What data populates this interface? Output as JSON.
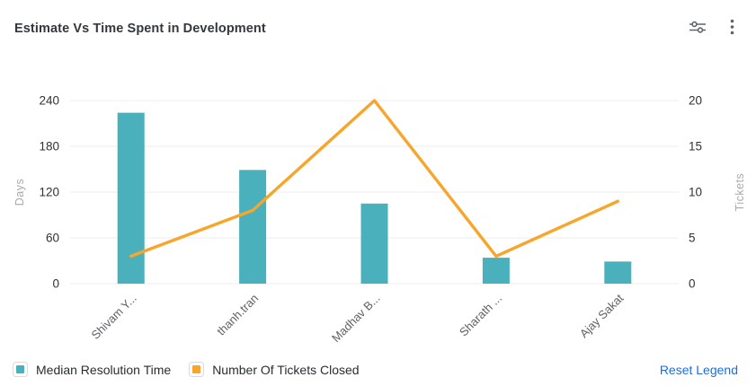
{
  "header": {
    "title": "Estimate Vs Time Spent in Development",
    "settings_icon": "sliders-icon",
    "menu_icon": "kebab-menu-icon"
  },
  "chart_data": {
    "type": "combo-bar-line",
    "title": "Estimate Vs Time Spent in Development",
    "categories": [
      "Shivam Y...",
      "thanh.tran",
      "Madhav B...",
      "Sharath ...",
      "Ajay Sakat"
    ],
    "series": [
      {
        "name": "Median Resolution Time",
        "type": "bar",
        "axis": "left",
        "color": "#4AB1BC",
        "values": [
          224,
          149,
          105,
          34,
          29
        ]
      },
      {
        "name": "Number Of Tickets Closed",
        "type": "line",
        "axis": "right",
        "color": "#F7A62B",
        "values": [
          3,
          8,
          20,
          3,
          9
        ]
      }
    ],
    "left_axis": {
      "label": "Days",
      "ticks": [
        0,
        60,
        120,
        180,
        240
      ],
      "min": 0,
      "max": 240
    },
    "right_axis": {
      "label": "Tickets",
      "ticks": [
        0,
        5,
        10,
        15,
        20
      ],
      "min": 0,
      "max": 20
    },
    "grid": true,
    "legend_position": "bottom",
    "colors": {
      "gridline": "#ececec",
      "tick_text": "#2f3237",
      "category_text": "#5e6166",
      "axis_name_text": "#a6a9ae"
    }
  },
  "legend": {
    "items": [
      {
        "label": "Median Resolution Time",
        "color": "#4AB1BC"
      },
      {
        "label": "Number Of Tickets Closed",
        "color": "#F7A62B"
      }
    ],
    "reset_label": "Reset Legend"
  }
}
